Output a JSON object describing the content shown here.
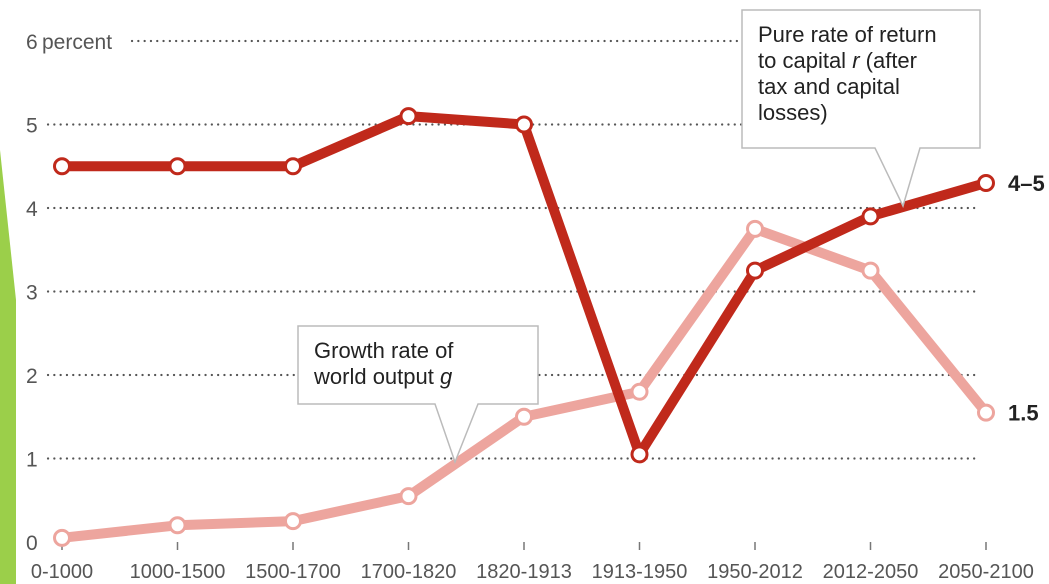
{
  "chart_data": {
    "type": "line",
    "title": "",
    "xlabel": "",
    "ylabel": "",
    "ylim": [
      0,
      6
    ],
    "y_unit_label": "percent",
    "y_ticks": [
      0,
      1,
      2,
      3,
      4,
      5,
      6
    ],
    "grid": true,
    "categories": [
      "0-1000",
      "1000-1500",
      "1500-1700",
      "1700-1820",
      "1820-1913",
      "1913-1950",
      "1950-2012",
      "2012-2050",
      "2050-2100"
    ],
    "series": [
      {
        "name": "Pure rate of return to capital r (after tax and capital losses)",
        "values": [
          4.5,
          4.5,
          4.5,
          5.1,
          5.0,
          1.05,
          3.25,
          3.9,
          4.3
        ],
        "color": "#c0291b",
        "end_label": "4–5",
        "callout_lines": [
          "Pure rate of return",
          "to capital r (after",
          "tax and capital",
          "losses)"
        ]
      },
      {
        "name": "Growth rate of world output g",
        "values": [
          0.05,
          0.2,
          0.25,
          0.55,
          1.5,
          1.8,
          3.75,
          3.25,
          1.55
        ],
        "color": "#eda59e",
        "end_label": "1.5",
        "callout_lines": [
          "Growth rate of",
          "world output g"
        ]
      }
    ]
  },
  "colors": {
    "accent_bar": "#9bcf4a",
    "grid": "#555555",
    "axis_text": "#555555",
    "callout_border": "#bbbbbb"
  }
}
